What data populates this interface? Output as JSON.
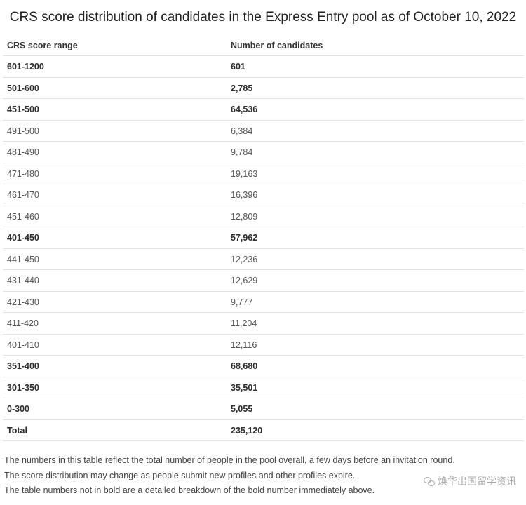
{
  "title": "CRS score distribution of candidates in the Express Entry pool as of October 10, 2022",
  "table": {
    "headers": [
      "CRS score range",
      "Number of candidates"
    ],
    "rows": [
      {
        "range": "601-1200",
        "count": "601",
        "bold": true
      },
      {
        "range": "501-600",
        "count": "2,785",
        "bold": true
      },
      {
        "range": "451-500",
        "count": "64,536",
        "bold": true
      },
      {
        "range": "491-500",
        "count": "6,384",
        "bold": false
      },
      {
        "range": "481-490",
        "count": "9,784",
        "bold": false
      },
      {
        "range": "471-480",
        "count": "19,163",
        "bold": false
      },
      {
        "range": "461-470",
        "count": "16,396",
        "bold": false
      },
      {
        "range": "451-460",
        "count": "12,809",
        "bold": false
      },
      {
        "range": "401-450",
        "count": "57,962",
        "bold": true
      },
      {
        "range": "441-450",
        "count": "12,236",
        "bold": false
      },
      {
        "range": "431-440",
        "count": "12,629",
        "bold": false
      },
      {
        "range": "421-430",
        "count": "9,777",
        "bold": false
      },
      {
        "range": "411-420",
        "count": "11,204",
        "bold": false
      },
      {
        "range": "401-410",
        "count": "12,116",
        "bold": false
      },
      {
        "range": "351-400",
        "count": "68,680",
        "bold": true
      },
      {
        "range": "301-350",
        "count": "35,501",
        "bold": true
      },
      {
        "range": "0-300",
        "count": "5,055",
        "bold": true
      },
      {
        "range": "Total",
        "count": "235,120",
        "bold": true
      }
    ]
  },
  "notes": [
    "The numbers in this table reflect the total number of people in the pool overall, a few days before an invitation round.",
    "The score distribution may change as people submit new profiles and other profiles expire.",
    "The table numbers not in bold are a detailed breakdown of the bold number immediately above."
  ],
  "watermark": {
    "text": "焕华出国留学资讯",
    "icon": "wechat-logo-icon"
  }
}
